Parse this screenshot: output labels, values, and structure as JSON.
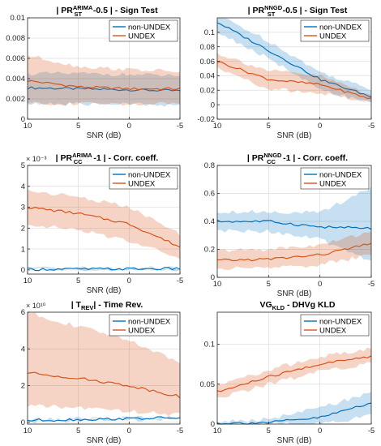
{
  "figure": {
    "xlabel": "SNR (dB)",
    "x_ticks": [
      10,
      5,
      0,
      -5
    ],
    "colors": {
      "non_undex": "#0072BD",
      "undex": "#D95319",
      "axis": "#262626",
      "grid": "#dcdcdc"
    }
  },
  "chart_data": [
    {
      "type": "line",
      "title": [
        "| PR",
        "ARIMA",
        "ST",
        "-0.5 |  - Sign Test"
      ],
      "xlabel": "SNR (dB)",
      "xlim": [
        10,
        -5
      ],
      "ylim": [
        0,
        0.01
      ],
      "y_ticks": [
        0,
        0.002,
        0.004,
        0.006,
        0.008,
        0.01
      ],
      "y_tick_labels": [
        "0",
        "0.002",
        "0.004",
        "0.006",
        "0.008",
        "0.01"
      ],
      "exponent": "",
      "legend": "top-right",
      "x": [
        10,
        5,
        0,
        -5
      ],
      "series": [
        {
          "name": "non-UNDEX",
          "values": [
            0.0031,
            0.003,
            0.0029,
            0.0028
          ],
          "lower": [
            0.0015,
            0.0015,
            0.0015,
            0.0014
          ],
          "upper": [
            0.0045,
            0.0045,
            0.0044,
            0.0043
          ]
        },
        {
          "name": "UNDEX",
          "values": [
            0.0038,
            0.0032,
            0.003,
            0.003
          ],
          "lower": [
            0.0016,
            0.0015,
            0.0015,
            0.0015
          ],
          "upper": [
            0.0063,
            0.0052,
            0.0049,
            0.0047
          ]
        }
      ]
    },
    {
      "type": "line",
      "title": [
        "| PR",
        "NNGD",
        "ST",
        "-0.5 |  - Sign Test"
      ],
      "xlabel": "SNR (dB)",
      "xlim": [
        10,
        -5
      ],
      "ylim": [
        -0.02,
        0.12
      ],
      "y_ticks": [
        -0.02,
        0,
        0.02,
        0.04,
        0.06,
        0.08,
        0.1
      ],
      "y_tick_labels": [
        "-0.02",
        "0",
        "0.02",
        "0.04",
        "0.06",
        "0.08",
        "0.1"
      ],
      "exponent": "",
      "legend": "top-right",
      "x": [
        10,
        5,
        0,
        -5
      ],
      "series": [
        {
          "name": "non-UNDEX",
          "values": [
            0.114,
            0.075,
            0.035,
            0.011
          ],
          "lower": [
            0.1,
            0.064,
            0.02,
            0.003
          ],
          "upper": [
            0.125,
            0.088,
            0.045,
            0.021
          ]
        },
        {
          "name": "UNDEX",
          "values": [
            0.06,
            0.035,
            0.028,
            0.008
          ],
          "lower": [
            0.05,
            0.022,
            0.016,
            0.003
          ],
          "upper": [
            0.071,
            0.047,
            0.04,
            0.014
          ]
        }
      ]
    },
    {
      "type": "line",
      "title": [
        "| PR",
        "ARIMA",
        "CC",
        "-1 |  - Corr. coeff."
      ],
      "xlabel": "SNR (dB)",
      "xlim": [
        10,
        -5
      ],
      "ylim": [
        -0.0002,
        0.005
      ],
      "y_ticks": [
        0,
        0.001,
        0.002,
        0.003,
        0.004,
        0.005
      ],
      "y_tick_labels": [
        "0",
        "1",
        "2",
        "3",
        "4",
        "5"
      ],
      "exponent": "× 10⁻³",
      "legend": "top-right",
      "x": [
        10,
        5,
        0,
        -5
      ],
      "series": [
        {
          "name": "non-UNDEX",
          "values": [
            3e-05,
            4e-05,
            5e-05,
            6e-05
          ],
          "lower": [
            1e-05,
            2e-05,
            3e-05,
            4e-05
          ],
          "upper": [
            5e-05,
            6e-05,
            7e-05,
            8e-05
          ]
        },
        {
          "name": "UNDEX",
          "values": [
            0.003,
            0.0027,
            0.0022,
            0.0011
          ],
          "lower": [
            0.0022,
            0.0019,
            0.0014,
            0.0006
          ],
          "upper": [
            0.0038,
            0.0035,
            0.003,
            0.0017
          ]
        }
      ]
    },
    {
      "type": "line",
      "title": [
        "| PR",
        "NNGD",
        "CC",
        "-1 |  - Corr. coeff."
      ],
      "xlabel": "SNR (dB)",
      "xlim": [
        10,
        -5
      ],
      "ylim": [
        0,
        0.8
      ],
      "y_ticks": [
        0,
        0.2,
        0.4,
        0.6,
        0.8
      ],
      "y_tick_labels": [
        "0",
        "0.2",
        "0.4",
        "0.6",
        "0.8"
      ],
      "exponent": "",
      "legend": "top-right",
      "x": [
        10,
        5,
        0,
        -5
      ],
      "series": [
        {
          "name": "non-UNDEX",
          "values": [
            0.4,
            0.4,
            0.36,
            0.35
          ],
          "lower": [
            0.33,
            0.33,
            0.27,
            0.12
          ],
          "upper": [
            0.47,
            0.47,
            0.46,
            0.65
          ]
        },
        {
          "name": "UNDEX",
          "values": [
            0.12,
            0.13,
            0.16,
            0.24
          ],
          "lower": [
            0.06,
            0.07,
            0.09,
            0.16
          ],
          "upper": [
            0.19,
            0.2,
            0.23,
            0.33
          ]
        }
      ]
    },
    {
      "type": "line",
      "title": [
        "| T",
        "",
        "REV",
        "|  - Time Rev."
      ],
      "xlabel": "SNR (dB)",
      "xlim": [
        10,
        -5
      ],
      "ylim": [
        -1000000000,
        60000000000
      ],
      "y_ticks": [
        0,
        20000000000,
        40000000000,
        60000000000
      ],
      "y_tick_labels": [
        "0",
        "2",
        "4",
        "6"
      ],
      "exponent": "× 10¹⁰",
      "legend": "top-right",
      "x": [
        10,
        5,
        0,
        -5
      ],
      "series": [
        {
          "name": "non-UNDEX",
          "values": [
            1000000000,
            1500000000,
            2000000000,
            2500000000
          ],
          "lower": [
            500000000,
            1000000000,
            1500000000,
            2000000000
          ],
          "upper": [
            1500000000,
            2000000000,
            2500000000,
            3000000000
          ]
        },
        {
          "name": "UNDEX",
          "values": [
            27000000000,
            24000000000,
            20000000000,
            14000000000
          ],
          "lower": [
            9000000000,
            8000000000,
            6000000000,
            4000000000
          ],
          "upper": [
            60000000000,
            52000000000,
            45000000000,
            32000000000
          ]
        }
      ]
    },
    {
      "type": "line",
      "title": [
        "VG",
        "",
        "KLD",
        " - DHVg KLD"
      ],
      "xlabel": "SNR (dB)",
      "xlim": [
        10,
        -5
      ],
      "ylim": [
        0,
        0.14
      ],
      "y_ticks": [
        0,
        0.05,
        0.1
      ],
      "y_tick_labels": [
        "0",
        "0.05",
        "0.1"
      ],
      "exponent": "",
      "legend": "top-right",
      "x": [
        10,
        5,
        0,
        -5
      ],
      "series": [
        {
          "name": "non-UNDEX",
          "values": [
            0.001,
            0.002,
            0.008,
            0.027
          ],
          "lower": [
            0.0,
            0.0,
            0.0,
            0.01
          ],
          "upper": [
            0.003,
            0.006,
            0.02,
            0.04
          ]
        },
        {
          "name": "UNDEX",
          "values": [
            0.04,
            0.059,
            0.075,
            0.085
          ],
          "lower": [
            0.032,
            0.05,
            0.066,
            0.076
          ],
          "upper": [
            0.048,
            0.068,
            0.084,
            0.094
          ]
        }
      ]
    }
  ]
}
